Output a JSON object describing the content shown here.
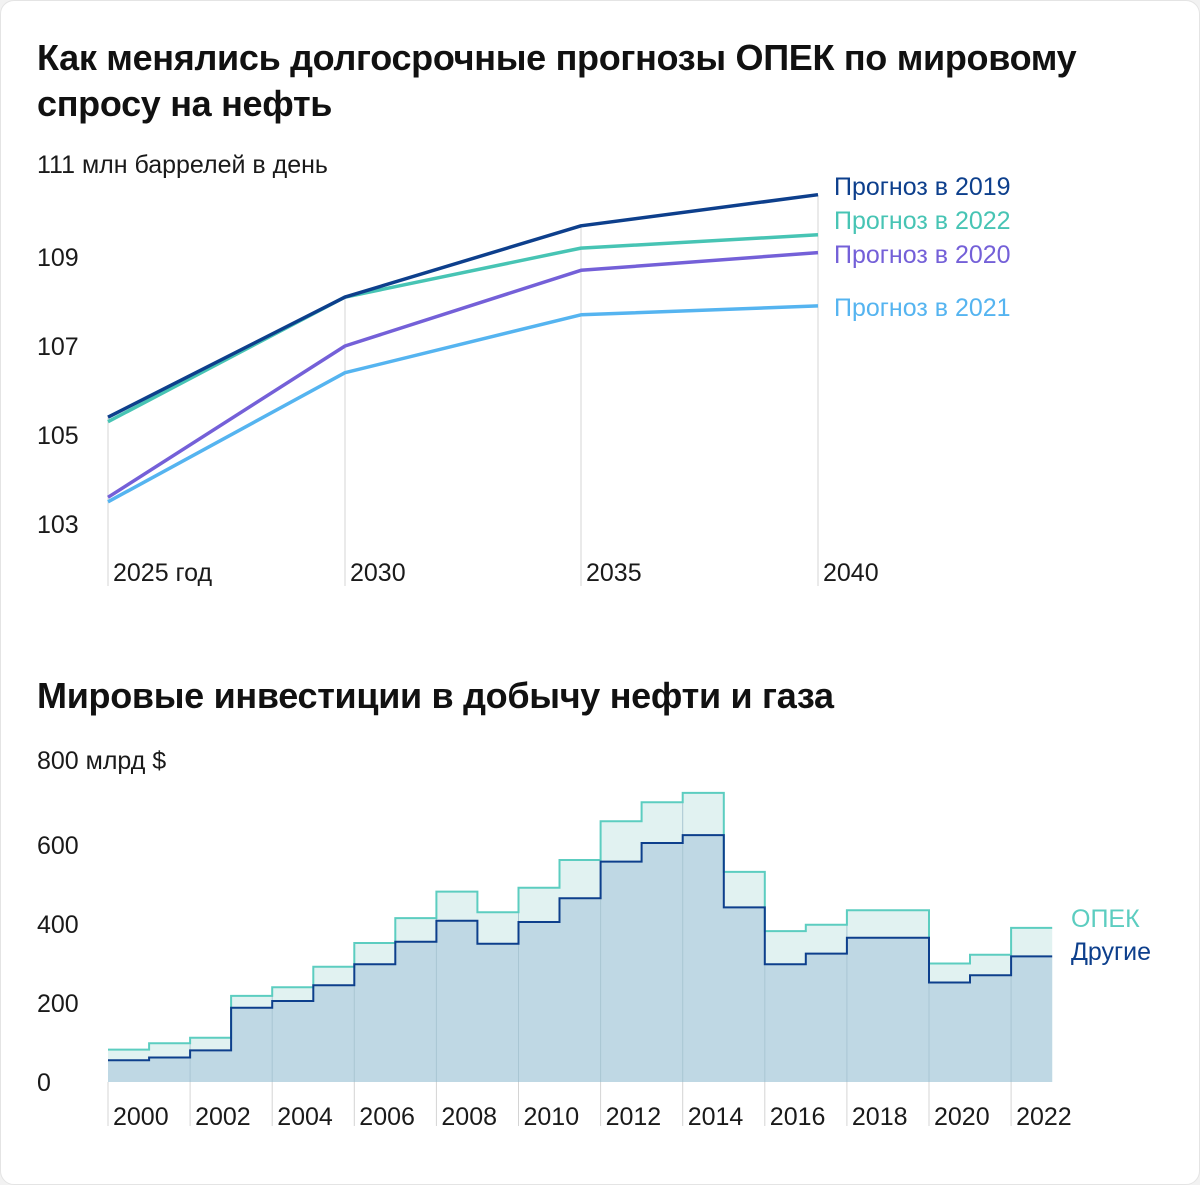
{
  "colors": {
    "c2019": "#0d3f8c",
    "c2022": "#47c4b4",
    "c2020": "#7460d8",
    "c2021": "#55b4f0",
    "opec_line": "#5ccdc0",
    "opec_fill": "#e1f2f1",
    "others_line": "#0d3f8c",
    "others_fill": "#bfd8e4",
    "grid": "#d4d4d4"
  },
  "chart1": {
    "title": "Как менялись долгосрочные прогнозы ОПЕК по мировому спросу на нефть",
    "chart_data": {
      "type": "line",
      "title": "Как менялись долгосрочные прогнозы ОПЕК по мировому спросу на нефть",
      "ylabel": "111 млн баррелей в день",
      "x": [
        2025,
        2030,
        2035,
        2040
      ],
      "x_tick_labels": [
        "2025 год",
        "2030",
        "2035",
        "2040"
      ],
      "y_ticks": [
        103,
        105,
        107,
        109
      ],
      "ylim": [
        103,
        111
      ],
      "series": [
        {
          "name": "Прогноз в 2019",
          "color_key": "c2019",
          "values": [
            105.4,
            108.1,
            109.7,
            110.4
          ]
        },
        {
          "name": "Прогноз в 2022",
          "color_key": "c2022",
          "values": [
            105.3,
            108.1,
            109.2,
            109.5
          ]
        },
        {
          "name": "Прогноз в 2020",
          "color_key": "c2020",
          "values": [
            103.6,
            107.0,
            108.7,
            109.1
          ]
        },
        {
          "name": "Прогноз в 2021",
          "color_key": "c2021",
          "values": [
            103.5,
            106.4,
            107.7,
            107.9
          ]
        }
      ],
      "legend": "right",
      "grid": "vertical"
    }
  },
  "chart2": {
    "title": "Мировые инвестиции в добычу нефти и газа",
    "chart_data": {
      "type": "area",
      "title": "Мировые инвестиции в добычу нефти и газа",
      "ylabel": "800 млрд $",
      "categories": [
        2000,
        2001,
        2002,
        2003,
        2004,
        2005,
        2006,
        2007,
        2008,
        2009,
        2010,
        2011,
        2012,
        2013,
        2014,
        2015,
        2016,
        2017,
        2018,
        2019,
        2020,
        2021,
        2022
      ],
      "x_tick_labels": [
        "2000",
        "2002",
        "2004",
        "2006",
        "2008",
        "2010",
        "2012",
        "2014",
        "2016",
        "2018",
        "2020",
        "2022"
      ],
      "y_ticks": [
        0,
        200,
        400,
        600
      ],
      "ylim": [
        0,
        800
      ],
      "series": [
        {
          "name": "ОПЕК",
          "color_key": "opec_line",
          "values": [
            82,
            98,
            112,
            218,
            240,
            292,
            352,
            415,
            482,
            430,
            492,
            562,
            660,
            708,
            732,
            532,
            382,
            398,
            435,
            435,
            300,
            322,
            390
          ]
        },
        {
          "name": "Другие",
          "color_key": "others_line",
          "values": [
            55,
            62,
            80,
            188,
            205,
            245,
            298,
            355,
            408,
            350,
            405,
            465,
            558,
            605,
            625,
            442,
            298,
            325,
            365,
            365,
            252,
            270,
            318
          ]
        }
      ],
      "legend": "right",
      "grid": "vertical",
      "step": true
    }
  }
}
